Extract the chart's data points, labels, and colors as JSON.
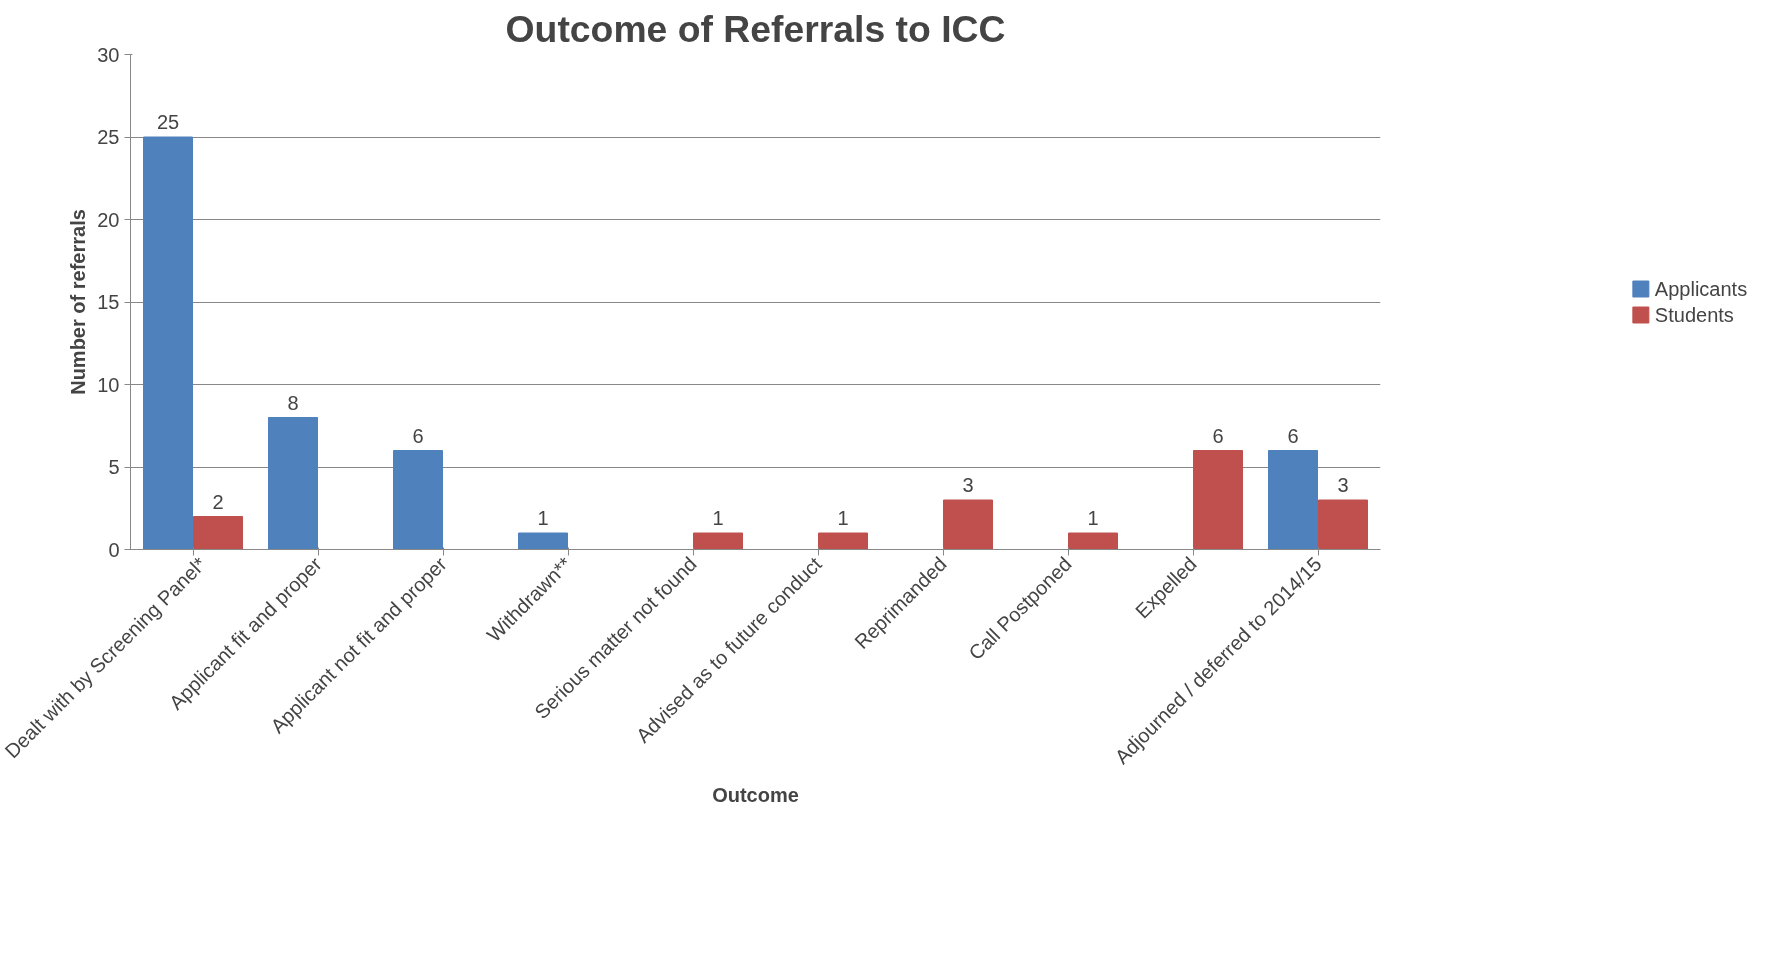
{
  "chart_data": {
    "type": "bar",
    "title": "Outcome of Referrals to ICC",
    "xlabel": "Outcome",
    "ylabel": "Number of referrals",
    "categories": [
      "Dealt with by Screening Panel*",
      "Applicant fit and proper",
      "Applicant not fit and proper",
      "Withdrawn**",
      "Serious matter not found",
      "Advised as to future conduct",
      "Reprimanded",
      "Call Postponed",
      "Expelled",
      "Adjourned / deferred to 2014/15"
    ],
    "series": [
      {
        "name": "Applicants",
        "color": "#4f81bd",
        "values": [
          25,
          8,
          6,
          1,
          null,
          null,
          null,
          null,
          null,
          6
        ]
      },
      {
        "name": "Students",
        "color": "#c0504d",
        "values": [
          2,
          null,
          null,
          null,
          1,
          1,
          3,
          1,
          6,
          3
        ]
      }
    ],
    "ylim": [
      0,
      30
    ],
    "yticks": [
      0,
      5,
      10,
      15,
      20,
      25,
      30
    ],
    "grid": "y",
    "legend": "right",
    "data_labels": true
  }
}
